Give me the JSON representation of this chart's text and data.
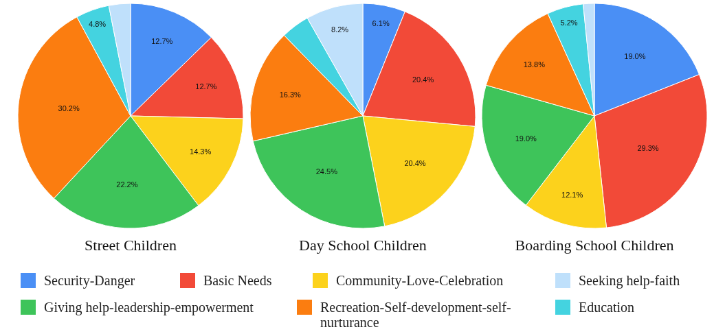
{
  "chart_data": [
    {
      "type": "pie",
      "title": "Street Children",
      "categories": [
        "Security-Danger",
        "Basic Needs",
        "Community-Love-Celebration",
        "Giving help-leadership-empowerment",
        "Recreation-Self-development-self-nurturance",
        "Education",
        "Seeking help-faith"
      ],
      "values": [
        12.7,
        12.7,
        14.3,
        22.2,
        30.2,
        4.8,
        3.1
      ],
      "value_labels": [
        "12.7%",
        "12.7%",
        "14.3%",
        "22.2%",
        "30.2%",
        "4.8%",
        null
      ],
      "colors": [
        "#4a8ff5",
        "#f24a38",
        "#fcd21c",
        "#3ec45a",
        "#fb7d10",
        "#44d3e0",
        "#bfe0fb"
      ],
      "legend": "bottom"
    },
    {
      "type": "pie",
      "title": "Day School Children",
      "values": [
        6.1,
        20.4,
        20.4,
        24.5,
        16.3,
        4.1,
        8.2
      ],
      "value_labels": [
        "6.1%",
        "20.4%",
        "20.4%",
        "24.5%",
        "16.3%",
        null,
        "8.2%"
      ],
      "colors": [
        "#4a8ff5",
        "#f24a38",
        "#fcd21c",
        "#3ec45a",
        "#fb7d10",
        "#44d3e0",
        "#bfe0fb"
      ]
    },
    {
      "type": "pie",
      "title": "Boarding School Children",
      "values": [
        19.0,
        29.3,
        12.1,
        19.0,
        13.8,
        5.2,
        1.6
      ],
      "value_labels": [
        "19.0%",
        "29.3%",
        "12.1%",
        "19.0%",
        "13.8%",
        "5.2%",
        null
      ],
      "colors": [
        "#4a8ff5",
        "#f24a38",
        "#fcd21c",
        "#3ec45a",
        "#fb7d10",
        "#44d3e0",
        "#bfe0fb"
      ]
    }
  ]
}
